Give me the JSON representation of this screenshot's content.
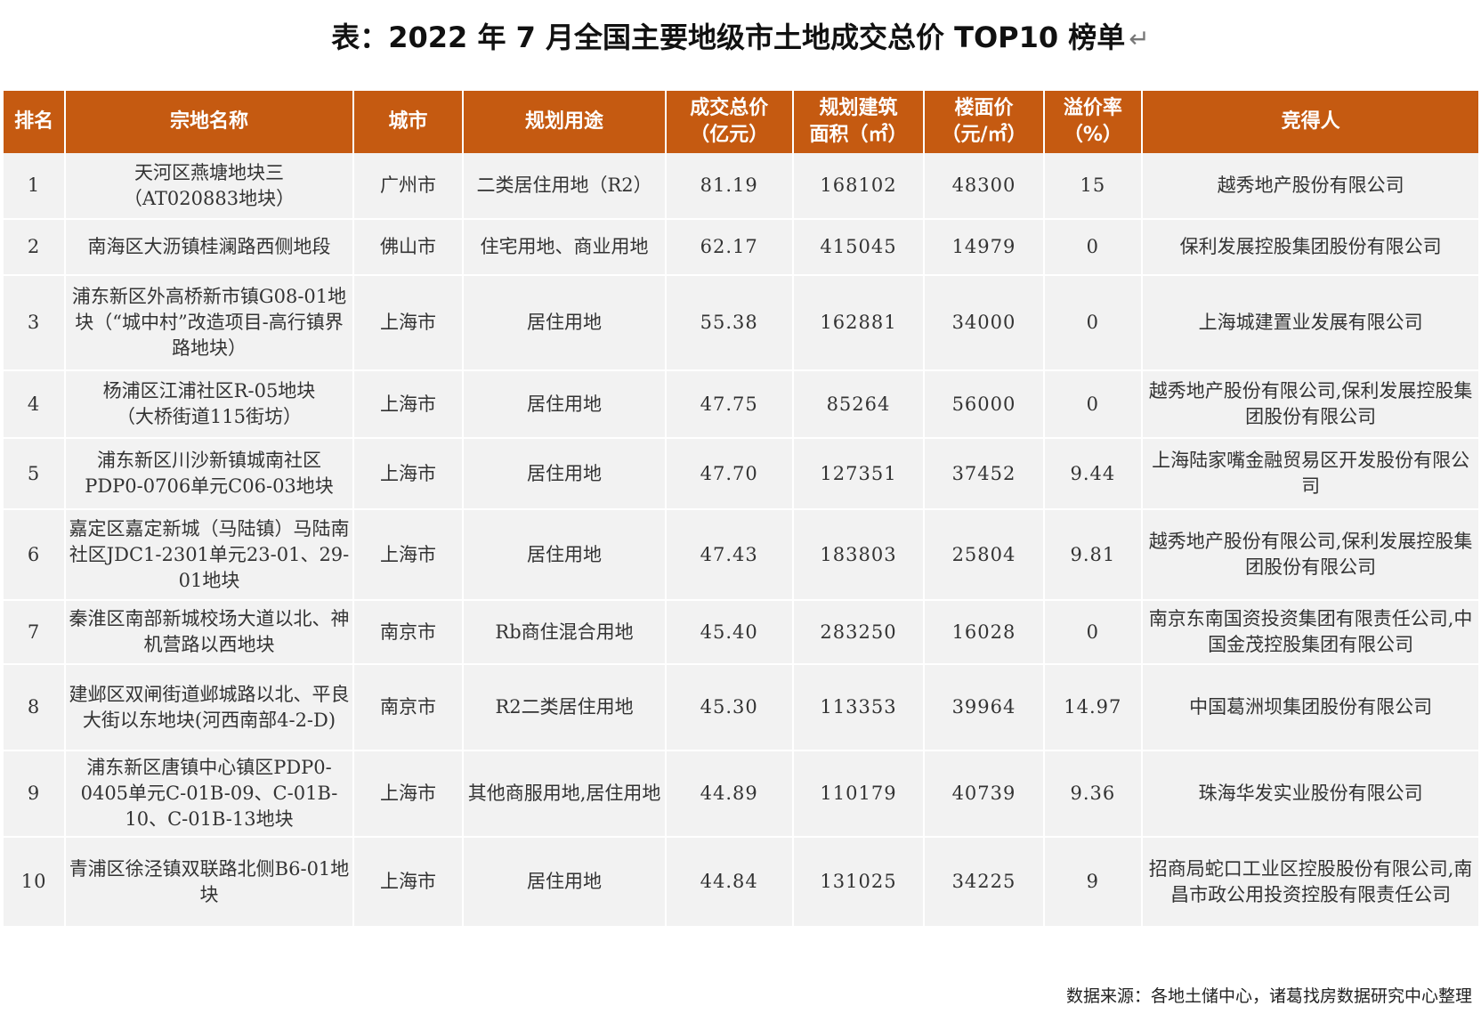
{
  "title": "表：2022 年 7 月全国主要地级市土地成交总价 TOP10 榜单",
  "return_mark": "↵",
  "columns": [
    "排名",
    "宗地名称",
    "城市",
    "规划用途",
    "成交总价\n（亿元）",
    "规划建筑\n面积（㎡）",
    "楼面价\n（元/㎡）",
    "溢价率\n（%）",
    "竞得人"
  ],
  "rows": [
    {
      "rank": "1",
      "name": "天河区燕塘地块三\n（AT020883地块）",
      "city": "广州市",
      "use": "二类居住用地（R2）",
      "total": "81.19",
      "area": "168102",
      "floor_price": "48300",
      "premium": "15",
      "winner": "越秀地产股份有限公司"
    },
    {
      "rank": "2",
      "name": "南海区大沥镇桂澜路西侧地段",
      "city": "佛山市",
      "use": "住宅用地、商业用地",
      "total": "62.17",
      "area": "415045",
      "floor_price": "14979",
      "premium": "0",
      "winner": "保利发展控股集团股份有限公司"
    },
    {
      "rank": "3",
      "name": "浦东新区外高桥新市镇G08-01地块（“城中村”改造项目-高行镇界路地块）",
      "city": "上海市",
      "use": "居住用地",
      "total": "55.38",
      "area": "162881",
      "floor_price": "34000",
      "premium": "0",
      "winner": "上海城建置业发展有限公司"
    },
    {
      "rank": "4",
      "name": "杨浦区江浦社区R-05地块\n（大桥街道115街坊）",
      "city": "上海市",
      "use": "居住用地",
      "total": "47.75",
      "area": "85264",
      "floor_price": "56000",
      "premium": "0",
      "winner": "越秀地产股份有限公司,保利发展控股集团股份有限公司"
    },
    {
      "rank": "5",
      "name": "浦东新区川沙新镇城南社区PDP0-0706单元C06-03地块",
      "city": "上海市",
      "use": "居住用地",
      "total": "47.70",
      "area": "127351",
      "floor_price": "37452",
      "premium": "9.44",
      "winner": "上海陆家嘴金融贸易区开发股份有限公司"
    },
    {
      "rank": "6",
      "name": "嘉定区嘉定新城（马陆镇）马陆南社区JDC1-2301单元23-01、29-01地块",
      "city": "上海市",
      "use": "居住用地",
      "total": "47.43",
      "area": "183803",
      "floor_price": "25804",
      "premium": "9.81",
      "winner": "越秀地产股份有限公司,保利发展控股集团股份有限公司"
    },
    {
      "rank": "7",
      "name": "秦淮区南部新城校场大道以北、神机营路以西地块",
      "city": "南京市",
      "use": "Rb商住混合用地",
      "total": "45.40",
      "area": "283250",
      "floor_price": "16028",
      "premium": "0",
      "winner": "南京东南国资投资集团有限责任公司,中国金茂控股集团有限公司"
    },
    {
      "rank": "8",
      "name": "建邺区双闸街道邺城路以北、平良大街以东地块(河西南部4-2-D)",
      "city": "南京市",
      "use": "R2二类居住用地",
      "total": "45.30",
      "area": "113353",
      "floor_price": "39964",
      "premium": "14.97",
      "winner": "中国葛洲坝集团股份有限公司"
    },
    {
      "rank": "9",
      "name": "浦东新区唐镇中心镇区PDP0-0405单元C-01B-09、C-01B-10、C-01B-13地块",
      "city": "上海市",
      "use": "其他商服用地,居住用地",
      "total": "44.89",
      "area": "110179",
      "floor_price": "40739",
      "premium": "9.36",
      "winner": "珠海华发实业股份有限公司"
    },
    {
      "rank": "10",
      "name": "青浦区徐泾镇双联路北侧B6-01地块",
      "city": "上海市",
      "use": "居住用地",
      "total": "44.84",
      "area": "131025",
      "floor_price": "34225",
      "premium": "9",
      "winner": "招商局蛇口工业区控股股份有限公司,南昌市政公用投资控股有限责任公司"
    }
  ],
  "source": "数据来源：各地土储中心，诸葛找房数据研究中心整理",
  "colors": {
    "header_bg": "#c55a11",
    "cell_bg": "#f2f2f2"
  }
}
